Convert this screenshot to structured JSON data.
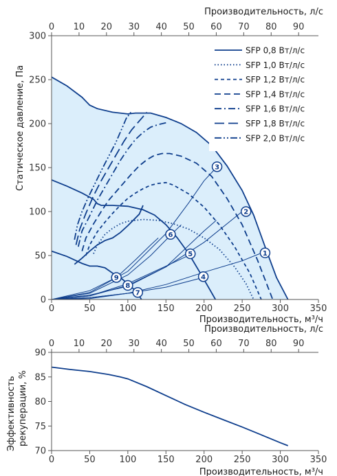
{
  "chart_data": [
    {
      "type": "line",
      "xlabel": "Производительность, м³/ч",
      "x2label": "Производительность, л/с",
      "ylabel": "Статическое давление, Па",
      "xlim": [
        0,
        350
      ],
      "ylim": [
        0,
        300
      ],
      "x2lim": [
        0,
        97.2222
      ],
      "xticks": [
        0,
        50,
        100,
        150,
        200,
        250,
        300,
        350
      ],
      "yticks": [
        0,
        50,
        100,
        150,
        200,
        250,
        300
      ],
      "x2ticks": [
        0,
        10,
        20,
        30,
        40,
        50,
        60,
        70,
        80,
        90
      ],
      "grid": false,
      "legend": "top-right",
      "accent_color": "#0d3d8c",
      "fill_color": "#dbeefb",
      "envelope": [
        [
          0,
          253
        ],
        [
          20,
          243
        ],
        [
          40,
          230
        ],
        [
          50,
          221
        ],
        [
          60,
          217
        ],
        [
          80,
          213
        ],
        [
          100,
          211
        ],
        [
          110,
          212
        ],
        [
          130,
          212
        ],
        [
          150,
          207
        ],
        [
          170,
          200
        ],
        [
          190,
          190
        ],
        [
          210,
          175
        ],
        [
          230,
          152
        ],
        [
          250,
          124
        ],
        [
          265,
          96
        ],
        [
          280,
          60
        ],
        [
          295,
          25
        ],
        [
          310,
          0
        ],
        [
          0,
          0
        ]
      ],
      "series": [
        {
          "name": "SFP 0,8 Вт/л/с",
          "dash": "solid",
          "points": [
            [
              0,
              253
            ],
            [
              20,
              243
            ],
            [
              40,
              230
            ],
            [
              50,
              221
            ],
            [
              60,
              217
            ],
            [
              80,
              213
            ],
            [
              100,
              211
            ],
            [
              110,
              212
            ],
            [
              130,
              212
            ],
            [
              150,
              207
            ],
            [
              170,
              200
            ],
            [
              190,
              190
            ],
            [
              210,
              175
            ],
            [
              230,
              152
            ],
            [
              250,
              124
            ],
            [
              265,
              96
            ],
            [
              280,
              60
            ],
            [
              295,
              25
            ],
            [
              310,
              0
            ]
          ]
        },
        {
          "name": "SFP 1,0 Вт/л/с",
          "dash": "dot",
          "points": [
            [
              55,
              52
            ],
            [
              60,
              62
            ],
            [
              70,
              74
            ],
            [
              80,
              81
            ],
            [
              90,
              86
            ],
            [
              100,
              89
            ],
            [
              120,
              91
            ],
            [
              140,
              90
            ],
            [
              160,
              86
            ],
            [
              180,
              80
            ],
            [
              200,
              70
            ],
            [
              220,
              57
            ],
            [
              240,
              37
            ],
            [
              255,
              18
            ],
            [
              265,
              0
            ]
          ]
        },
        {
          "name": "SFP 1,2 Вт/л/с",
          "dash": "dash-short",
          "points": [
            [
              45,
              50
            ],
            [
              50,
              62
            ],
            [
              60,
              77
            ],
            [
              70,
              88
            ],
            [
              80,
              98
            ],
            [
              90,
              107
            ],
            [
              100,
              115
            ],
            [
              110,
              121
            ],
            [
              120,
              126
            ],
            [
              130,
              130
            ],
            [
              140,
              132
            ],
            [
              150,
              133
            ],
            [
              160,
              130
            ],
            [
              180,
              120
            ],
            [
              200,
              105
            ],
            [
              220,
              85
            ],
            [
              240,
              60
            ],
            [
              260,
              30
            ],
            [
              275,
              0
            ]
          ]
        },
        {
          "name": "SFP 1,4 Вт/л/с",
          "dash": "dash",
          "points": [
            [
              40,
              55
            ],
            [
              45,
              70
            ],
            [
              55,
              86
            ],
            [
              65,
              100
            ],
            [
              75,
              113
            ],
            [
              85,
              123
            ],
            [
              95,
              133
            ],
            [
              105,
              143
            ],
            [
              115,
              152
            ],
            [
              125,
              159
            ],
            [
              135,
              164
            ],
            [
              145,
              166
            ],
            [
              155,
              166
            ],
            [
              170,
              163
            ],
            [
              190,
              155
            ],
            [
              210,
              140
            ],
            [
              230,
              115
            ],
            [
              250,
              85
            ],
            [
              270,
              45
            ],
            [
              290,
              0
            ]
          ]
        },
        {
          "name": "SFP 1,6 Вт/л/с",
          "dash": "dashdot",
          "points": [
            [
              35,
              60
            ],
            [
              40,
              78
            ],
            [
              50,
              95
            ],
            [
              60,
              113
            ],
            [
              70,
              128
            ],
            [
              80,
              143
            ],
            [
              90,
              158
            ],
            [
              100,
              171
            ],
            [
              110,
              182
            ],
            [
              120,
              190
            ],
            [
              130,
              196
            ],
            [
              140,
              199
            ],
            [
              150,
              201
            ]
          ]
        },
        {
          "name": "SFP 1,8 Вт/л/с",
          "dash": "dash-long",
          "points": [
            [
              32,
              62
            ],
            [
              37,
              80
            ],
            [
              45,
              98
            ],
            [
              55,
              118
            ],
            [
              65,
              135
            ],
            [
              75,
              150
            ],
            [
              85,
              165
            ],
            [
              95,
              180
            ],
            [
              105,
              193
            ],
            [
              115,
              203
            ],
            [
              125,
              213
            ]
          ]
        },
        {
          "name": "SFP 2,0 Вт/л/с",
          "dash": "dashdotdot",
          "points": [
            [
              30,
              68
            ],
            [
              34,
              85
            ],
            [
              40,
              100
            ],
            [
              48,
              116
            ],
            [
              57,
              132
            ],
            [
              66,
              148
            ],
            [
              75,
              163
            ],
            [
              84,
              178
            ],
            [
              92,
              194
            ],
            [
              98,
              206
            ],
            [
              104,
              213
            ]
          ]
        }
      ],
      "lower_curves": [
        {
          "points": [
            [
              0,
              136
            ],
            [
              20,
              129
            ],
            [
              40,
              121
            ],
            [
              55,
              114
            ],
            [
              60,
              109
            ],
            [
              65,
              107
            ],
            [
              80,
              107
            ],
            [
              100,
              106
            ],
            [
              120,
              102
            ],
            [
              135,
              96
            ],
            [
              150,
              85
            ],
            [
              165,
              70
            ],
            [
              180,
              52
            ],
            [
              195,
              30
            ],
            [
              205,
              15
            ],
            [
              215,
              0
            ]
          ]
        },
        {
          "points": [
            [
              0,
              55
            ],
            [
              20,
              49
            ],
            [
              40,
              41
            ],
            [
              50,
              38
            ],
            [
              60,
              38
            ],
            [
              70,
              36
            ],
            [
              80,
              30
            ],
            [
              90,
              25
            ],
            [
              100,
              18
            ],
            [
              110,
              10
            ],
            [
              118,
              0
            ]
          ]
        },
        {
          "points": [
            [
              30,
              40
            ],
            [
              40,
              47
            ],
            [
              50,
              55
            ],
            [
              60,
              62
            ],
            [
              70,
              67
            ],
            [
              80,
              70
            ],
            [
              90,
              76
            ],
            [
              100,
              84
            ],
            [
              115,
              97
            ],
            [
              120,
              107
            ]
          ]
        }
      ],
      "system_curves": [
        {
          "label": "1",
          "points": [
            [
              0,
              0
            ],
            [
              50,
              2
            ],
            [
              100,
              7
            ],
            [
              150,
              17
            ],
            [
              200,
              31
            ],
            [
              250,
              44
            ],
            [
              273,
              52
            ]
          ]
        },
        {
          "label": "2",
          "points": [
            [
              0,
              0
            ],
            [
              50,
              4
            ],
            [
              100,
              16
            ],
            [
              150,
              37
            ],
            [
              200,
              65
            ],
            [
              250,
              100
            ]
          ]
        },
        {
          "label": "3",
          "points": [
            [
              0,
              0
            ],
            [
              50,
              8
            ],
            [
              100,
              32
            ],
            [
              150,
              75
            ],
            [
              180,
              110
            ],
            [
              200,
              135
            ],
            [
              216,
              150
            ]
          ]
        },
        {
          "label": "4",
          "points": [
            [
              0,
              0
            ],
            [
              50,
              2
            ],
            [
              100,
              7
            ],
            [
              150,
              14
            ],
            [
              199,
              25
            ]
          ]
        },
        {
          "label": "5",
          "points": [
            [
              0,
              0
            ],
            [
              50,
              4
            ],
            [
              100,
              18
            ],
            [
              150,
              38
            ],
            [
              182,
              51
            ]
          ]
        },
        {
          "label": "6",
          "points": [
            [
              0,
              0
            ],
            [
              50,
              7
            ],
            [
              100,
              28
            ],
            [
              130,
              50
            ],
            [
              156,
              73
            ],
            [
              170,
              85
            ]
          ]
        },
        {
          "label": "7",
          "points": [
            [
              0,
              0
            ],
            [
              50,
              1
            ],
            [
              100,
              7
            ],
            [
              113,
              8
            ]
          ]
        },
        {
          "label": "8",
          "points": [
            [
              0,
              0
            ],
            [
              50,
              5
            ],
            [
              100,
              15
            ],
            [
              150,
              37
            ],
            [
              200,
              78
            ],
            [
              216,
              90
            ]
          ]
        },
        {
          "label": "9",
          "points": [
            [
              0,
              0
            ],
            [
              50,
              10
            ],
            [
              85,
              25
            ],
            [
              110,
              45
            ],
            [
              130,
              62
            ],
            [
              140,
              70
            ]
          ]
        }
      ],
      "markers": [
        {
          "label": "1",
          "x": 280,
          "y": 53
        },
        {
          "label": "2",
          "x": 255,
          "y": 100
        },
        {
          "label": "3",
          "x": 217,
          "y": 151
        },
        {
          "label": "4",
          "x": 199,
          "y": 26
        },
        {
          "label": "5",
          "x": 182,
          "y": 52
        },
        {
          "label": "6",
          "x": 156,
          "y": 74
        },
        {
          "label": "7",
          "x": 113,
          "y": 8
        },
        {
          "label": "8",
          "x": 100,
          "y": 16
        },
        {
          "label": "9",
          "x": 85,
          "y": 25
        }
      ]
    },
    {
      "type": "line",
      "xlabel": "Производительность, м³/ч",
      "x2label": "Производительность, л/с",
      "ylabel": "Эффективность рекуперации, %",
      "ylabel_lines": [
        "Эффективность",
        "рекуперации, %"
      ],
      "xlim": [
        0,
        350
      ],
      "ylim": [
        70,
        90
      ],
      "x2lim": [
        0,
        97.2222
      ],
      "xticks": [
        0,
        50,
        100,
        150,
        200,
        250,
        300,
        350
      ],
      "yticks": [
        70,
        75,
        80,
        85,
        90
      ],
      "x2ticks": [
        0,
        10,
        20,
        30,
        40,
        50,
        60,
        70,
        80,
        90
      ],
      "grid": false,
      "series": [
        {
          "points": [
            [
              0,
              87
            ],
            [
              25,
              86.5
            ],
            [
              50,
              86.1
            ],
            [
              75,
              85.5
            ],
            [
              90,
              85
            ],
            [
              100,
              84.6
            ],
            [
              125,
              83
            ],
            [
              150,
              81.2
            ],
            [
              175,
              79.4
            ],
            [
              200,
              77.8
            ],
            [
              225,
              76.3
            ],
            [
              250,
              74.8
            ],
            [
              275,
              73.2
            ],
            [
              300,
              71.6
            ],
            [
              310,
              71
            ]
          ]
        }
      ]
    }
  ]
}
